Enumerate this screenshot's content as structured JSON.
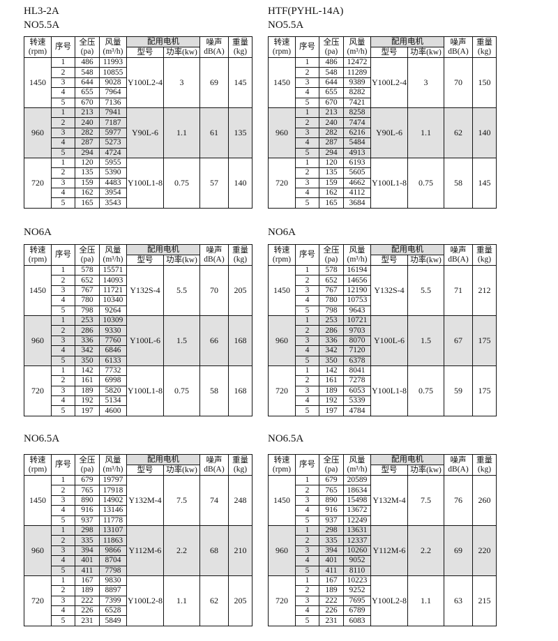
{
  "headers": {
    "rpm": [
      "转速",
      "(rpm)"
    ],
    "seq": "序号",
    "pressure": [
      "全压",
      "(pa)"
    ],
    "flow": [
      "风量",
      "(m³/h)"
    ],
    "motor": "配用电机",
    "motor_model": "型号",
    "motor_power": "功率(kw)",
    "noise": [
      "噪声",
      "dB(A)"
    ],
    "weight": [
      "重量",
      "(kg)"
    ]
  },
  "colors": {
    "shaded_group": "#e1e1e1",
    "border": "#111111"
  },
  "tables": [
    {
      "model": "HL3-2A",
      "size": "NO5.5A",
      "groups": [
        {
          "rpm": "1450",
          "motor": "Y100L2-4",
          "power": "3",
          "noise": "69",
          "weight": "145",
          "rows": [
            [
              "1",
              "486",
              "11993"
            ],
            [
              "2",
              "548",
              "10855"
            ],
            [
              "3",
              "644",
              "9028"
            ],
            [
              "4",
              "655",
              "7964"
            ],
            [
              "5",
              "670",
              "7136"
            ]
          ]
        },
        {
          "rpm": "960",
          "motor": "Y90L-6",
          "power": "1.1",
          "noise": "61",
          "weight": "135",
          "rows": [
            [
              "1",
              "213",
              "7941"
            ],
            [
              "2",
              "240",
              "7187"
            ],
            [
              "3",
              "282",
              "5977"
            ],
            [
              "4",
              "287",
              "5273"
            ],
            [
              "5",
              "294",
              "4724"
            ]
          ]
        },
        {
          "rpm": "720",
          "motor": "Y100L1-8",
          "power": "0.75",
          "noise": "57",
          "weight": "140",
          "rows": [
            [
              "1",
              "120",
              "5955"
            ],
            [
              "2",
              "135",
              "5390"
            ],
            [
              "3",
              "159",
              "4483"
            ],
            [
              "4",
              "162",
              "3954"
            ],
            [
              "5",
              "165",
              "3543"
            ]
          ]
        }
      ]
    },
    {
      "model": "HTF(PYHL-14A)",
      "size": "NO5.5A",
      "groups": [
        {
          "rpm": "1450",
          "motor": "Y100L2-4",
          "power": "3",
          "noise": "70",
          "weight": "150",
          "rows": [
            [
              "1",
              "486",
              "12472"
            ],
            [
              "2",
              "548",
              "11289"
            ],
            [
              "3",
              "644",
              "9389"
            ],
            [
              "4",
              "655",
              "8282"
            ],
            [
              "5",
              "670",
              "7421"
            ]
          ]
        },
        {
          "rpm": "960",
          "motor": "Y90L-6",
          "power": "1.1",
          "noise": "62",
          "weight": "140",
          "rows": [
            [
              "1",
              "213",
              "8258"
            ],
            [
              "2",
              "240",
              "7474"
            ],
            [
              "3",
              "282",
              "6216"
            ],
            [
              "4",
              "287",
              "5484"
            ],
            [
              "5",
              "294",
              "4913"
            ]
          ]
        },
        {
          "rpm": "720",
          "motor": "Y100L1-8",
          "power": "0.75",
          "noise": "58",
          "weight": "145",
          "rows": [
            [
              "1",
              "120",
              "6193"
            ],
            [
              "2",
              "135",
              "5605"
            ],
            [
              "3",
              "159",
              "4662"
            ],
            [
              "4",
              "162",
              "4112"
            ],
            [
              "5",
              "165",
              "3684"
            ]
          ]
        }
      ]
    },
    {
      "model": "",
      "size": "NO6A",
      "groups": [
        {
          "rpm": "1450",
          "motor": "Y132S-4",
          "power": "5.5",
          "noise": "70",
          "weight": "205",
          "rows": [
            [
              "1",
              "578",
              "15571"
            ],
            [
              "2",
              "652",
              "14093"
            ],
            [
              "3",
              "767",
              "11721"
            ],
            [
              "4",
              "780",
              "10340"
            ],
            [
              "5",
              "798",
              "9264"
            ]
          ]
        },
        {
          "rpm": "960",
          "motor": "Y100L-6",
          "power": "1.5",
          "noise": "66",
          "weight": "168",
          "rows": [
            [
              "1",
              "253",
              "10309"
            ],
            [
              "2",
              "286",
              "9330"
            ],
            [
              "3",
              "336",
              "7760"
            ],
            [
              "4",
              "342",
              "6846"
            ],
            [
              "5",
              "350",
              "6133"
            ]
          ]
        },
        {
          "rpm": "720",
          "motor": "Y100L1-8",
          "power": "0.75",
          "noise": "58",
          "weight": "168",
          "rows": [
            [
              "1",
              "142",
              "7732"
            ],
            [
              "2",
              "161",
              "6998"
            ],
            [
              "3",
              "189",
              "5820"
            ],
            [
              "4",
              "192",
              "5134"
            ],
            [
              "5",
              "197",
              "4600"
            ]
          ]
        }
      ]
    },
    {
      "model": "",
      "size": "NO6A",
      "groups": [
        {
          "rpm": "1450",
          "motor": "Y132S-4",
          "power": "5.5",
          "noise": "71",
          "weight": "212",
          "rows": [
            [
              "1",
              "578",
              "16194"
            ],
            [
              "2",
              "652",
              "14656"
            ],
            [
              "3",
              "767",
              "12190"
            ],
            [
              "4",
              "780",
              "10753"
            ],
            [
              "5",
              "798",
              "9643"
            ]
          ]
        },
        {
          "rpm": "960",
          "motor": "Y100L-6",
          "power": "1.5",
          "noise": "67",
          "weight": "175",
          "rows": [
            [
              "1",
              "253",
              "10721"
            ],
            [
              "2",
              "286",
              "9703"
            ],
            [
              "3",
              "336",
              "8070"
            ],
            [
              "4",
              "342",
              "7120"
            ],
            [
              "5",
              "350",
              "6378"
            ]
          ]
        },
        {
          "rpm": "720",
          "motor": "Y100L1-8",
          "power": "0.75",
          "noise": "59",
          "weight": "175",
          "rows": [
            [
              "1",
              "142",
              "8041"
            ],
            [
              "2",
              "161",
              "7278"
            ],
            [
              "3",
              "189",
              "6053"
            ],
            [
              "4",
              "192",
              "5339"
            ],
            [
              "5",
              "197",
              "4784"
            ]
          ]
        }
      ]
    },
    {
      "model": "",
      "size": "NO6.5A",
      "groups": [
        {
          "rpm": "1450",
          "motor": "Y132M-4",
          "power": "7.5",
          "noise": "74",
          "weight": "248",
          "rows": [
            [
              "1",
              "679",
              "19797"
            ],
            [
              "2",
              "765",
              "17918"
            ],
            [
              "3",
              "890",
              "14902"
            ],
            [
              "4",
              "916",
              "13146"
            ],
            [
              "5",
              "937",
              "11778"
            ]
          ]
        },
        {
          "rpm": "960",
          "motor": "Y112M-6",
          "power": "2.2",
          "noise": "68",
          "weight": "210",
          "rows": [
            [
              "1",
              "298",
              "13107"
            ],
            [
              "2",
              "335",
              "11863"
            ],
            [
              "3",
              "394",
              "9866"
            ],
            [
              "4",
              "401",
              "8704"
            ],
            [
              "5",
              "411",
              "7798"
            ]
          ]
        },
        {
          "rpm": "720",
          "motor": "Y100L2-8",
          "power": "1.1",
          "noise": "62",
          "weight": "205",
          "rows": [
            [
              "1",
              "167",
              "9830"
            ],
            [
              "2",
              "189",
              "8897"
            ],
            [
              "3",
              "222",
              "7399"
            ],
            [
              "4",
              "226",
              "6528"
            ],
            [
              "5",
              "231",
              "5849"
            ]
          ]
        }
      ]
    },
    {
      "model": "",
      "size": "NO6.5A",
      "groups": [
        {
          "rpm": "1450",
          "motor": "Y132M-4",
          "power": "7.5",
          "noise": "76",
          "weight": "260",
          "rows": [
            [
              "1",
              "679",
              "20589"
            ],
            [
              "2",
              "765",
              "18634"
            ],
            [
              "3",
              "890",
              "15498"
            ],
            [
              "4",
              "916",
              "13672"
            ],
            [
              "5",
              "937",
              "12249"
            ]
          ]
        },
        {
          "rpm": "960",
          "motor": "Y112M-6",
          "power": "2.2",
          "noise": "69",
          "weight": "220",
          "rows": [
            [
              "1",
              "298",
              "13631"
            ],
            [
              "2",
              "335",
              "12337"
            ],
            [
              "3",
              "394",
              "10260"
            ],
            [
              "4",
              "401",
              "9052"
            ],
            [
              "5",
              "411",
              "8110"
            ]
          ]
        },
        {
          "rpm": "720",
          "motor": "Y100L2-8",
          "power": "1.1",
          "noise": "63",
          "weight": "215",
          "rows": [
            [
              "1",
              "167",
              "10223"
            ],
            [
              "2",
              "189",
              "9252"
            ],
            [
              "3",
              "222",
              "7695"
            ],
            [
              "4",
              "226",
              "6789"
            ],
            [
              "5",
              "231",
              "6083"
            ]
          ]
        }
      ]
    }
  ]
}
